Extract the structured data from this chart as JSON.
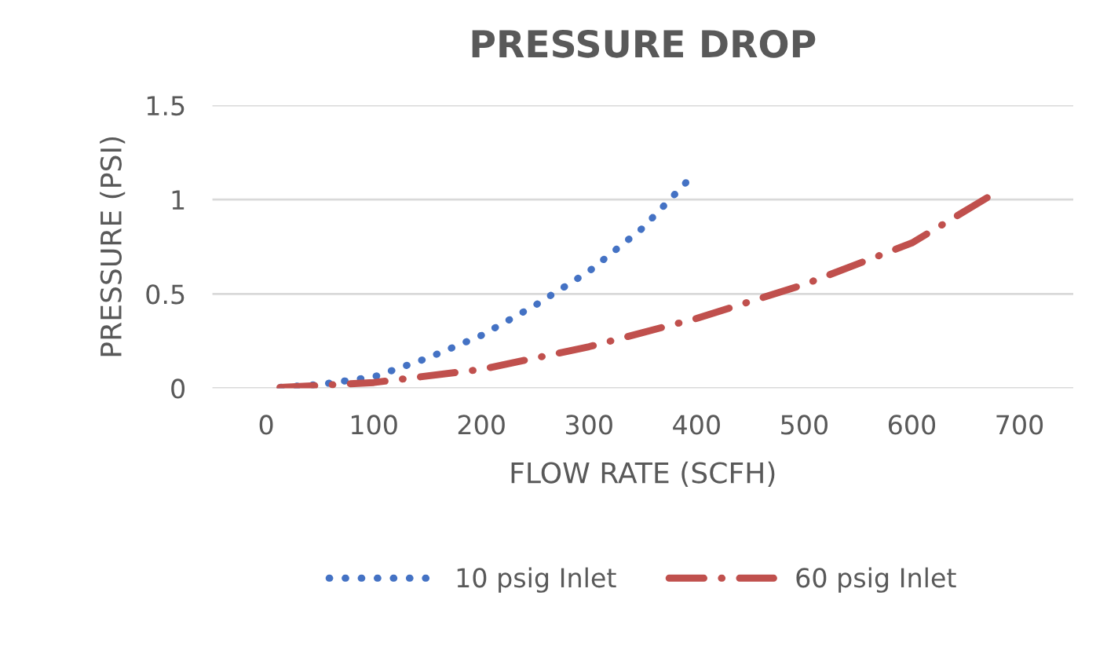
{
  "chart_data": {
    "type": "line",
    "title": "PRESSURE DROP",
    "xlabel": "FLOW RATE (SCFH)",
    "ylabel": "PRESSURE (PSI)",
    "xlim": [
      -50,
      750
    ],
    "xticks": [
      0,
      100,
      200,
      300,
      400,
      500,
      600,
      700
    ],
    "ylim": [
      0,
      1.5
    ],
    "yticks": [
      0,
      0.5,
      1,
      1.5
    ],
    "grid": "y",
    "legend": "bottom",
    "marker": "none",
    "series": [
      {
        "name": "10 psig Inlet",
        "color": "#4472c4",
        "line_style": "dotted",
        "x": [
          0,
          50,
          100,
          150,
          200,
          250,
          300,
          350,
          390
        ],
        "values": [
          0,
          0.02,
          0.06,
          0.16,
          0.28,
          0.44,
          0.62,
          0.85,
          1.09
        ]
      },
      {
        "name": "60 psig Inlet",
        "color": "#c0504d",
        "line_style": "dashdot",
        "x": [
          0,
          100,
          200,
          300,
          400,
          500,
          600,
          670
        ],
        "values": [
          0,
          0.03,
          0.1,
          0.22,
          0.37,
          0.55,
          0.77,
          1.01
        ]
      }
    ]
  }
}
